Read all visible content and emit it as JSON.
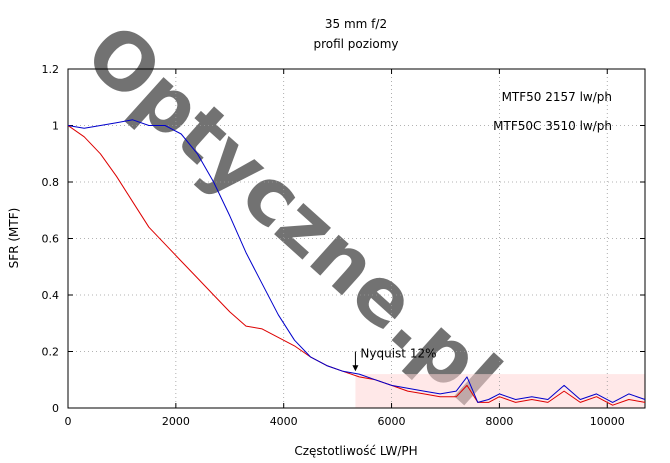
{
  "chart_data": {
    "type": "line",
    "title": "35 mm f/2",
    "subtitle": "profil poziomy",
    "xlabel": "Częstotliwość LW/PH",
    "ylabel": "SFR (MTF)",
    "xlim": [
      0,
      10700
    ],
    "ylim": [
      0,
      1.2
    ],
    "x_ticks": [
      0,
      2000,
      4000,
      6000,
      8000,
      10000
    ],
    "y_ticks": [
      0,
      0.2,
      0.4,
      0.6,
      0.8,
      1,
      1.2
    ],
    "x_tick_labels": [
      "0",
      "2000",
      "4000",
      "6000",
      "8000",
      "10000"
    ],
    "y_tick_labels": [
      "0",
      "0.2",
      "0.4",
      "0.6",
      "0.8",
      "1",
      "1.2"
    ],
    "grid": true,
    "annotations": {
      "mtf50": "MTF50 2157 lw/ph",
      "mtf50c": "MTF50C 3510 lw/ph",
      "nyquist": "Nyquist 12%"
    },
    "nyquist_x": 5330,
    "watermark": "Optyczne.pl",
    "series": [
      {
        "color": "#0000cc",
        "x": [
          0,
          300,
          600,
          900,
          1200,
          1500,
          1800,
          2100,
          2400,
          2700,
          3000,
          3300,
          3600,
          3900,
          4200,
          4500,
          4800,
          5100,
          5400,
          5700,
          6000,
          6300,
          6600,
          6900,
          7200,
          7400,
          7600,
          7800,
          8000,
          8300,
          8600,
          8900,
          9200,
          9500,
          9800,
          10100,
          10400,
          10700
        ],
        "y": [
          1.0,
          0.99,
          1.0,
          1.01,
          1.02,
          1.0,
          1.0,
          0.97,
          0.9,
          0.8,
          0.68,
          0.55,
          0.44,
          0.33,
          0.24,
          0.18,
          0.15,
          0.13,
          0.12,
          0.1,
          0.08,
          0.07,
          0.06,
          0.05,
          0.06,
          0.11,
          0.02,
          0.03,
          0.05,
          0.03,
          0.04,
          0.03,
          0.08,
          0.03,
          0.05,
          0.02,
          0.05,
          0.03
        ]
      },
      {
        "color": "#dd0000",
        "x": [
          0,
          300,
          600,
          900,
          1200,
          1500,
          1800,
          2100,
          2400,
          2700,
          3000,
          3300,
          3600,
          3900,
          4200,
          4500,
          4800,
          5100,
          5400,
          5700,
          6000,
          6300,
          6600,
          6900,
          7200,
          7400,
          7600,
          7800,
          8000,
          8300,
          8600,
          8900,
          9200,
          9500,
          9800,
          10100,
          10400,
          10700
        ],
        "y": [
          1.0,
          0.96,
          0.9,
          0.82,
          0.73,
          0.64,
          0.58,
          0.52,
          0.46,
          0.4,
          0.34,
          0.29,
          0.28,
          0.25,
          0.22,
          0.18,
          0.15,
          0.13,
          0.11,
          0.1,
          0.08,
          0.06,
          0.05,
          0.04,
          0.04,
          0.08,
          0.02,
          0.02,
          0.04,
          0.02,
          0.03,
          0.02,
          0.06,
          0.02,
          0.04,
          0.01,
          0.03,
          0.02
        ]
      }
    ]
  }
}
